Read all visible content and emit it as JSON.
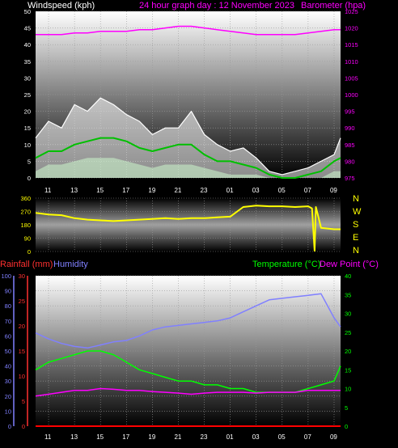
{
  "header": {
    "left_title": "Windspeed (kph)",
    "center_title": "24 hour graph day : 12 November 2023",
    "right_title": "Barometer (hpa)"
  },
  "colors": {
    "wind_gust": "#ffffff",
    "wind_avg": "#00c000",
    "wind_low": "#c8f0c8",
    "barometer": "#ff00ff",
    "direction": "#ffff00",
    "humidity": "#8080ff",
    "temperature": "#00ff00",
    "dewpoint": "#ff00ff",
    "rain": "#ff0000",
    "rain_axis": "#ff3030"
  },
  "chart_data": [
    {
      "type": "line",
      "panel": "wind",
      "title": "24 hour graph day : 12 November 2023",
      "ylabel": "Windspeed (kph)",
      "y2label": "Barometer (hpa)",
      "ylim": [
        0,
        50
      ],
      "y2lim": [
        975,
        1025
      ],
      "yticks": [
        "0",
        "5",
        "10",
        "15",
        "20",
        "25",
        "30",
        "35",
        "40",
        "45",
        "50"
      ],
      "y2ticks": [
        "975",
        "980",
        "985",
        "990",
        "995",
        "1000",
        "1005",
        "1010",
        "1015",
        "1020",
        "1025"
      ],
      "xticks": [
        "11",
        "13",
        "15",
        "17",
        "19",
        "21",
        "23",
        "01",
        "03",
        "05",
        "07",
        "09"
      ],
      "x_hours": [
        10,
        11,
        12,
        13,
        14,
        15,
        16,
        17,
        18,
        19,
        20,
        21,
        22,
        23,
        24,
        25,
        26,
        27,
        28,
        29,
        30,
        31,
        32,
        33,
        33.5
      ],
      "series": [
        {
          "name": "gust",
          "values": [
            12,
            17,
            15,
            22,
            20,
            24,
            22,
            19,
            17,
            13,
            15,
            15,
            20,
            13,
            10,
            8,
            9,
            6,
            2,
            1,
            2,
            3,
            5,
            7,
            12
          ]
        },
        {
          "name": "average",
          "values": [
            6,
            8,
            8,
            10,
            11,
            12,
            12,
            11,
            9,
            8,
            9,
            10,
            10,
            7,
            5,
            5,
            4,
            3,
            1,
            0,
            0,
            1,
            2,
            5,
            6
          ]
        },
        {
          "name": "low",
          "values": [
            2,
            4,
            4,
            5,
            6,
            6,
            6,
            5,
            4,
            3,
            4,
            4,
            4,
            3,
            2,
            1,
            1,
            1,
            0,
            0,
            0,
            0,
            0,
            2,
            2
          ]
        },
        {
          "name": "barometer",
          "values": [
            1018,
            1018,
            1018,
            1018.5,
            1018.5,
            1019,
            1019,
            1019,
            1019.5,
            1019.5,
            1020,
            1020.5,
            1020.5,
            1020,
            1019.5,
            1019,
            1018.5,
            1018,
            1018,
            1018,
            1018,
            1018.5,
            1019,
            1019.5,
            1019.5
          ]
        }
      ]
    },
    {
      "type": "line",
      "panel": "direction",
      "ylim": [
        0,
        360
      ],
      "yticks": [
        "0",
        "90",
        "180",
        "270",
        "360"
      ],
      "compass": [
        "N",
        "W",
        "S",
        "E",
        "N"
      ],
      "xticks": [
        "11",
        "13",
        "15",
        "17",
        "19",
        "21",
        "23",
        "01",
        "03",
        "05",
        "07",
        "09"
      ],
      "x_hours": [
        10,
        11,
        12,
        13,
        14,
        15,
        16,
        17,
        18,
        19,
        20,
        21,
        22,
        23,
        24,
        25,
        26,
        27,
        28,
        29,
        30,
        31,
        31.3,
        31.5,
        31.6,
        32,
        33,
        33.5
      ],
      "series": [
        {
          "name": "direction",
          "values": [
            260,
            250,
            245,
            225,
            215,
            210,
            205,
            210,
            215,
            220,
            225,
            220,
            225,
            225,
            230,
            235,
            300,
            310,
            305,
            305,
            300,
            305,
            290,
            5,
            300,
            160,
            150,
            150
          ]
        }
      ]
    },
    {
      "type": "line",
      "panel": "temperature",
      "y1label": "Rainfall (mm)",
      "y2label": "Humidity",
      "y3label": "Temperature (°C)",
      "y4label": "Dew Point (°C)",
      "humidity_lim": [
        0,
        100
      ],
      "rain_lim": [
        0,
        30
      ],
      "temp_lim": [
        0,
        40
      ],
      "humidity_ticks": [
        "0",
        "10",
        "20",
        "30",
        "40",
        "50",
        "60",
        "70",
        "80",
        "90",
        "100"
      ],
      "rain_ticks": [
        "0",
        "5",
        "10",
        "15",
        "20",
        "25",
        "30"
      ],
      "temp_ticks": [
        "0",
        "5",
        "10",
        "15",
        "20",
        "25",
        "30",
        "35",
        "40"
      ],
      "xticks": [
        "11",
        "13",
        "15",
        "17",
        "19",
        "21",
        "23",
        "01",
        "03",
        "05",
        "07",
        "09"
      ],
      "x_hours": [
        10,
        11,
        12,
        13,
        14,
        15,
        16,
        17,
        18,
        19,
        20,
        21,
        22,
        23,
        24,
        25,
        26,
        27,
        28,
        29,
        30,
        31,
        32,
        33,
        33.5
      ],
      "series": [
        {
          "name": "humidity",
          "values": [
            62,
            58,
            55,
            53,
            52,
            54,
            56,
            57,
            60,
            64,
            66,
            67,
            68,
            69,
            70,
            72,
            76,
            80,
            84,
            85,
            86,
            87,
            88,
            72,
            66
          ]
        },
        {
          "name": "temperature",
          "values": [
            15,
            17,
            18,
            19,
            20,
            20,
            19,
            17,
            15,
            14,
            13,
            12,
            12,
            11,
            11,
            10,
            10,
            9,
            9,
            9,
            9,
            10,
            11,
            12,
            16
          ]
        },
        {
          "name": "dewpoint",
          "values": [
            8,
            8.5,
            9,
            9.5,
            9.5,
            10,
            9.8,
            9.5,
            9.5,
            9.2,
            9,
            8.8,
            8.5,
            8.8,
            9,
            9,
            9,
            8.8,
            9,
            9,
            9,
            9.5,
            9.5,
            9.5,
            9.5
          ]
        },
        {
          "name": "rainfall",
          "values": [
            0,
            0,
            0,
            0,
            0,
            0,
            0,
            0,
            0,
            0,
            0,
            0,
            0,
            0,
            0,
            0,
            0,
            0,
            0,
            0,
            0,
            0,
            0,
            0,
            0
          ]
        }
      ]
    }
  ],
  "panels": {
    "direction_compass": [
      "N",
      "W",
      "S",
      "E",
      "N"
    ],
    "temp_header": {
      "rainfall": "Rainfall (mm)",
      "humidity": "Humidity",
      "temperature": "Temperature (°C)",
      "dewpoint": "Dew Point (°C)"
    }
  }
}
